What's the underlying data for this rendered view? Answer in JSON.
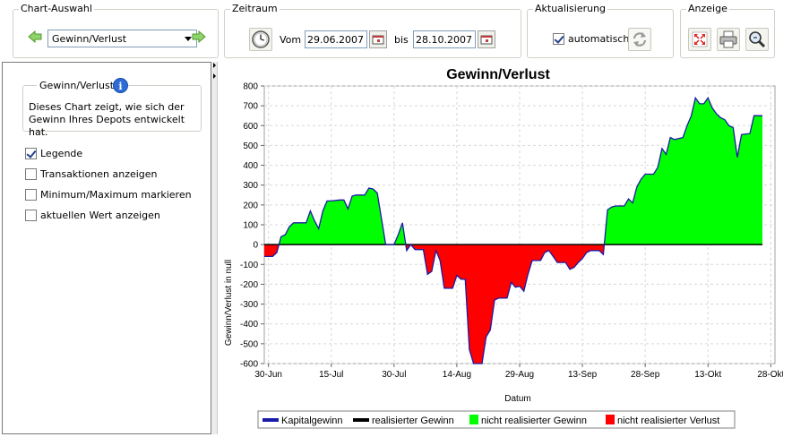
{
  "toolbar": {
    "chart_selection": {
      "title": "Chart-Auswahl",
      "selected": "Gewinn/Verlust"
    },
    "period": {
      "title": "Zeitraum",
      "from_label": "Vom",
      "from": "29.06.2007",
      "to_label": "bis",
      "to": "28.10.2007"
    },
    "refresh": {
      "title": "Aktualisierung",
      "auto_label": "automatisch",
      "auto_checked": true
    },
    "view": {
      "title": "Anzeige"
    }
  },
  "sidebar": {
    "info_title": "Gewinn/Verlust",
    "info_text": "Dieses Chart zeigt, wie sich der Gewinn Ihres Depots entwickelt hat.",
    "options": [
      {
        "label": "Legende",
        "checked": true
      },
      {
        "label": "Transaktionen anzeigen",
        "checked": false
      },
      {
        "label": "Minimum/Maximum markieren",
        "checked": false
      },
      {
        "label": "aktuellen Wert anzeigen",
        "checked": false
      }
    ]
  },
  "colors": {
    "gain": "#00ff00",
    "loss": "#ff0000",
    "line": "#1a1aa8",
    "accent": "#2d6bd6"
  },
  "chart_data": {
    "type": "area",
    "title": "Gewinn/Verlust",
    "xlabel": "Datum",
    "ylabel": "Gewinn/Verlust in null",
    "ylim": [
      -600,
      800
    ],
    "yticks": [
      800,
      700,
      600,
      500,
      400,
      300,
      200,
      100,
      0,
      -100,
      -200,
      -300,
      -400,
      -500,
      -600
    ],
    "xlim": [
      "2007-06-29",
      "2007-10-29"
    ],
    "xticks": [
      {
        "label": "30-Jun",
        "date": "2007-06-30"
      },
      {
        "label": "15-Jul",
        "date": "2007-07-15"
      },
      {
        "label": "30-Jul",
        "date": "2007-07-30"
      },
      {
        "label": "14-Aug",
        "date": "2007-08-14"
      },
      {
        "label": "29-Aug",
        "date": "2007-08-29"
      },
      {
        "label": "13-Sep",
        "date": "2007-09-13"
      },
      {
        "label": "28-Sep",
        "date": "2007-09-28"
      },
      {
        "label": "13-Okt",
        "date": "2007-10-13"
      },
      {
        "label": "28-Okt",
        "date": "2007-10-28"
      }
    ],
    "grid": true,
    "legend_position": "bottom",
    "legend": [
      "Kapitalgewinn",
      "realisierter Gewinn",
      "nicht realisierter Gewinn",
      "nicht realisierter Verlust"
    ],
    "series": [
      {
        "name": "Kapitalgewinn",
        "points": [
          [
            "2007-06-29",
            -60
          ],
          [
            "2007-07-01",
            -60
          ],
          [
            "2007-07-02",
            -40
          ],
          [
            "2007-07-03",
            40
          ],
          [
            "2007-07-04",
            50
          ],
          [
            "2007-07-05",
            90
          ],
          [
            "2007-07-06",
            110
          ],
          [
            "2007-07-07",
            110
          ],
          [
            "2007-07-09",
            110
          ],
          [
            "2007-07-10",
            170
          ],
          [
            "2007-07-11",
            120
          ],
          [
            "2007-07-12",
            80
          ],
          [
            "2007-07-13",
            170
          ],
          [
            "2007-07-14",
            220
          ],
          [
            "2007-07-15",
            220
          ],
          [
            "2007-07-17",
            225
          ],
          [
            "2007-07-18",
            225
          ],
          [
            "2007-07-19",
            180
          ],
          [
            "2007-07-20",
            245
          ],
          [
            "2007-07-21",
            250
          ],
          [
            "2007-07-23",
            250
          ],
          [
            "2007-07-24",
            285
          ],
          [
            "2007-07-25",
            280
          ],
          [
            "2007-07-26",
            260
          ],
          [
            "2007-07-27",
            130
          ],
          [
            "2007-07-28",
            0
          ],
          [
            "2007-07-30",
            0
          ],
          [
            "2007-07-31",
            50
          ],
          [
            "2007-08-01",
            110
          ],
          [
            "2007-08-02",
            -30
          ],
          [
            "2007-08-03",
            0
          ],
          [
            "2007-08-04",
            -25
          ],
          [
            "2007-08-06",
            -25
          ],
          [
            "2007-08-07",
            -150
          ],
          [
            "2007-08-08",
            -135
          ],
          [
            "2007-08-09",
            -30
          ],
          [
            "2007-08-10",
            -80
          ],
          [
            "2007-08-11",
            -220
          ],
          [
            "2007-08-13",
            -220
          ],
          [
            "2007-08-14",
            -155
          ],
          [
            "2007-08-15",
            -175
          ],
          [
            "2007-08-16",
            -175
          ],
          [
            "2007-08-17",
            -530
          ],
          [
            "2007-08-18",
            -600
          ],
          [
            "2007-08-20",
            -600
          ],
          [
            "2007-08-21",
            -465
          ],
          [
            "2007-08-22",
            -430
          ],
          [
            "2007-08-23",
            -280
          ],
          [
            "2007-08-24",
            -270
          ],
          [
            "2007-08-26",
            -270
          ],
          [
            "2007-08-27",
            -190
          ],
          [
            "2007-08-28",
            -215
          ],
          [
            "2007-08-29",
            -210
          ],
          [
            "2007-08-30",
            -235
          ],
          [
            "2007-08-31",
            -150
          ],
          [
            "2007-09-01",
            -80
          ],
          [
            "2007-09-03",
            -80
          ],
          [
            "2007-09-04",
            -40
          ],
          [
            "2007-09-05",
            -30
          ],
          [
            "2007-09-06",
            -60
          ],
          [
            "2007-09-07",
            -90
          ],
          [
            "2007-09-09",
            -90
          ],
          [
            "2007-09-10",
            -125
          ],
          [
            "2007-09-11",
            -115
          ],
          [
            "2007-09-12",
            -90
          ],
          [
            "2007-09-13",
            -70
          ],
          [
            "2007-09-14",
            -40
          ],
          [
            "2007-09-15",
            -30
          ],
          [
            "2007-09-17",
            -30
          ],
          [
            "2007-09-18",
            -50
          ],
          [
            "2007-09-19",
            175
          ],
          [
            "2007-09-20",
            190
          ],
          [
            "2007-09-21",
            195
          ],
          [
            "2007-09-23",
            195
          ],
          [
            "2007-09-24",
            230
          ],
          [
            "2007-09-25",
            210
          ],
          [
            "2007-09-26",
            290
          ],
          [
            "2007-09-27",
            330
          ],
          [
            "2007-09-28",
            355
          ],
          [
            "2007-09-30",
            355
          ],
          [
            "2007-10-01",
            390
          ],
          [
            "2007-10-02",
            485
          ],
          [
            "2007-10-03",
            455
          ],
          [
            "2007-10-04",
            540
          ],
          [
            "2007-10-05",
            530
          ],
          [
            "2007-10-07",
            540
          ],
          [
            "2007-10-08",
            600
          ],
          [
            "2007-10-09",
            650
          ],
          [
            "2007-10-10",
            740
          ],
          [
            "2007-10-11",
            710
          ],
          [
            "2007-10-12",
            710
          ],
          [
            "2007-10-13",
            740
          ],
          [
            "2007-10-14",
            690
          ],
          [
            "2007-10-15",
            660
          ],
          [
            "2007-10-16",
            640
          ],
          [
            "2007-10-17",
            630
          ],
          [
            "2007-10-18",
            600
          ],
          [
            "2007-10-19",
            590
          ],
          [
            "2007-10-20",
            440
          ],
          [
            "2007-10-21",
            555
          ],
          [
            "2007-10-23",
            560
          ],
          [
            "2007-10-24",
            650
          ],
          [
            "2007-10-26",
            650
          ]
        ]
      },
      {
        "name": "realisierter Gewinn",
        "points": [
          [
            "2007-06-29",
            0
          ],
          [
            "2007-10-26",
            0
          ]
        ]
      }
    ]
  }
}
